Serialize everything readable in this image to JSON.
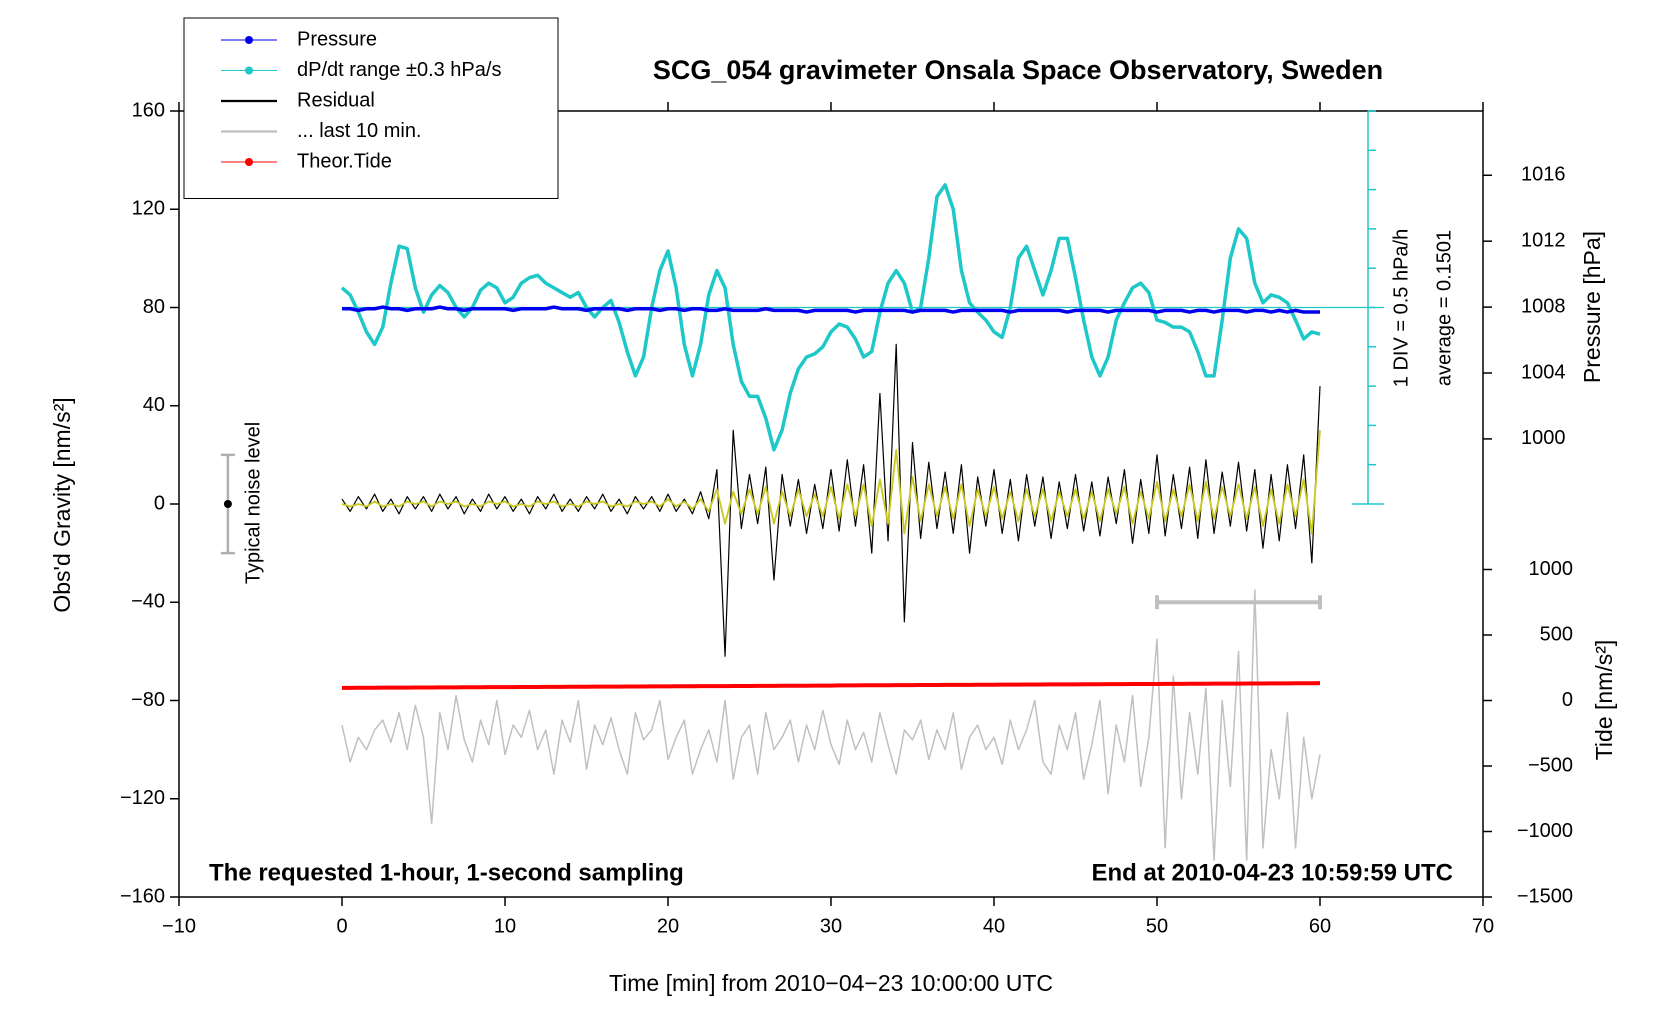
{
  "chart_data": {
    "type": "line",
    "title": "SCG_054 gravimeter Onsala Space Observatory, Sweden",
    "xlabel": "Time [min] from 2010−04−23 10:00:00 UTC",
    "ylabel": "Obs'd Gravity [nm/s²]",
    "y2label": "Pressure [hPa]",
    "y3label": "Tide [nm/s²]",
    "annotations": [
      "The requested 1-hour, 1-second sampling",
      "End at 2010-04-23 10:59:59 UTC",
      "1 DIV = 0.5 hPa/h"
    ],
    "dpdt_average": {
      "value": 0.1501,
      "label": "average = 0.1501"
    },
    "noise_level": {
      "label": "Typical noise level",
      "x": -7,
      "value": 0,
      "error": 20
    },
    "zoom_range": {
      "x": [
        50,
        60
      ],
      "y": -40
    },
    "xlim": [
      -10,
      70
    ],
    "xticks": [
      {
        "value": -10,
        "label": "−10"
      },
      0,
      10,
      20,
      30,
      40,
      50,
      60,
      70
    ],
    "ylim": [
      -160,
      160
    ],
    "yticks": [
      {
        "value": -160,
        "label": "−160"
      },
      {
        "value": -120,
        "label": "−120"
      },
      {
        "value": -80,
        "label": "−80"
      },
      {
        "value": -40,
        "label": "−40"
      },
      0,
      40,
      80,
      120,
      160
    ],
    "y2lim": [
      972.2,
      1019.9
    ],
    "y2ticks": [
      1000,
      1004,
      1008,
      1012,
      1016
    ],
    "y3lim": [
      -1500,
      4500
    ],
    "y3ticks": [
      {
        "value": -1500,
        "label": "−1500"
      },
      {
        "value": -1000,
        "label": "−1000"
      },
      {
        "value": -500,
        "label": "−500"
      },
      0,
      500,
      1000
    ],
    "y4lim": [
      -7.3499,
      2.6501
    ],
    "y4ticks": [
      -2.3499,
      -1.8499,
      -1.3499,
      -0.8499,
      -0.3499,
      0.1501,
      0.6501,
      1.1501,
      1.6501,
      2.1501,
      2.6501
    ],
    "x": [
      0,
      0.5,
      1,
      1.5,
      2,
      2.5,
      3,
      3.5,
      4,
      4.5,
      5,
      5.5,
      6,
      6.5,
      7,
      7.5,
      8,
      8.5,
      9,
      9.5,
      10,
      10.5,
      11,
      11.5,
      12,
      12.5,
      13,
      13.5,
      14,
      14.5,
      15,
      15.5,
      16,
      16.5,
      17,
      17.5,
      18,
      18.5,
      19,
      19.5,
      20,
      20.5,
      21,
      21.5,
      22,
      22.5,
      23,
      23.5,
      24,
      24.5,
      25,
      25.5,
      26,
      26.5,
      27,
      27.5,
      28,
      28.5,
      29,
      29.5,
      30,
      30.5,
      31,
      31.5,
      32,
      32.5,
      33,
      33.5,
      34,
      34.5,
      35,
      35.5,
      36,
      36.5,
      37,
      37.5,
      38,
      38.5,
      39,
      39.5,
      40,
      40.5,
      41,
      41.5,
      42,
      42.5,
      43,
      43.5,
      44,
      44.5,
      45,
      45.5,
      46,
      46.5,
      47,
      47.5,
      48,
      48.5,
      49,
      49.5,
      50,
      50.5,
      51,
      51.5,
      52,
      52.5,
      53,
      53.5,
      54,
      54.5,
      55,
      55.5,
      56,
      56.5,
      57,
      57.5,
      58,
      58.5,
      59,
      59.5,
      60
    ],
    "series": [
      {
        "name": "Pressure",
        "color": "#0000ee",
        "axis": "y2",
        "marker": "circle",
        "width": 3.5,
        "values": [
          1007.9,
          1007.9,
          1007.8,
          1007.9,
          1007.9,
          1008.0,
          1007.9,
          1007.9,
          1007.8,
          1007.9,
          1007.9,
          1007.9,
          1008.0,
          1007.9,
          1007.9,
          1007.8,
          1007.9,
          1007.9,
          1007.9,
          1007.9,
          1007.9,
          1007.8,
          1007.9,
          1007.9,
          1007.9,
          1007.9,
          1008.0,
          1007.9,
          1007.9,
          1007.9,
          1007.8,
          1007.9,
          1007.9,
          1007.9,
          1007.9,
          1007.8,
          1007.9,
          1007.9,
          1007.9,
          1007.8,
          1007.9,
          1007.9,
          1007.8,
          1007.9,
          1007.9,
          1007.8,
          1007.8,
          1007.9,
          1007.8,
          1007.8,
          1007.8,
          1007.8,
          1007.9,
          1007.8,
          1007.8,
          1007.8,
          1007.8,
          1007.7,
          1007.8,
          1007.8,
          1007.8,
          1007.8,
          1007.8,
          1007.7,
          1007.8,
          1007.8,
          1007.8,
          1007.8,
          1007.8,
          1007.8,
          1007.7,
          1007.8,
          1007.8,
          1007.8,
          1007.8,
          1007.7,
          1007.8,
          1007.8,
          1007.8,
          1007.8,
          1007.8,
          1007.8,
          1007.7,
          1007.8,
          1007.8,
          1007.8,
          1007.8,
          1007.8,
          1007.8,
          1007.7,
          1007.8,
          1007.8,
          1007.8,
          1007.8,
          1007.7,
          1007.8,
          1007.8,
          1007.8,
          1007.8,
          1007.8,
          1007.7,
          1007.8,
          1007.8,
          1007.8,
          1007.7,
          1007.8,
          1007.8,
          1007.7,
          1007.8,
          1007.8,
          1007.8,
          1007.7,
          1007.8,
          1007.8,
          1007.7,
          1007.8,
          1007.7,
          1007.8,
          1007.7,
          1007.7,
          1007.7
        ]
      },
      {
        "name": "dP/dt range ±0.3 hPa/s",
        "color": "#1ec8c8",
        "axis": "y4",
        "marker": "circle",
        "width": 3.5,
        "values": [
          0.4,
          0.31,
          0.09,
          -0.16,
          -0.32,
          -0.1,
          0.46,
          0.93,
          0.9,
          0.4,
          0.09,
          0.31,
          0.43,
          0.34,
          0.15,
          0.03,
          0.15,
          0.37,
          0.46,
          0.4,
          0.21,
          0.28,
          0.46,
          0.53,
          0.56,
          0.46,
          0.4,
          0.34,
          0.28,
          0.34,
          0.15,
          0.03,
          0.15,
          0.24,
          -0.04,
          -0.41,
          -0.72,
          -0.48,
          0.15,
          0.62,
          0.87,
          0.4,
          -0.32,
          -0.72,
          -0.32,
          0.31,
          0.62,
          0.4,
          -0.32,
          -0.79,
          -0.98,
          -0.98,
          -1.26,
          -1.66,
          -1.41,
          -0.94,
          -0.63,
          -0.48,
          -0.44,
          -0.35,
          -0.16,
          -0.06,
          -0.1,
          -0.25,
          -0.48,
          -0.41,
          0.09,
          0.46,
          0.62,
          0.46,
          0.09,
          0.15,
          0.78,
          1.56,
          1.71,
          1.4,
          0.62,
          0.21,
          0.09,
          -0.01,
          -0.16,
          -0.23,
          0.15,
          0.78,
          0.93,
          0.62,
          0.31,
          0.62,
          1.03,
          1.03,
          0.53,
          -0.01,
          -0.48,
          -0.72,
          -0.48,
          -0.01,
          0.21,
          0.4,
          0.46,
          0.34,
          -0.01,
          -0.04,
          -0.1,
          -0.1,
          -0.16,
          -0.41,
          -0.72,
          -0.72,
          -0.01,
          0.78,
          1.15,
          1.03,
          0.46,
          0.21,
          0.31,
          0.28,
          0.21,
          -0.01,
          -0.25,
          -0.16,
          -0.19
        ]
      },
      {
        "name": "Residual",
        "color": "#000000",
        "axis": "y",
        "width": 1.2,
        "values": [
          2,
          -3,
          3,
          -2,
          4,
          -3,
          2,
          -4,
          3,
          -2,
          3,
          -3,
          4,
          -2,
          3,
          -4,
          2,
          -3,
          4,
          -2,
          3,
          -3,
          2,
          -4,
          3,
          -2,
          4,
          -3,
          2,
          -3,
          3,
          -2,
          4,
          -3,
          2,
          -4,
          3,
          -2,
          3,
          -3,
          4,
          -3,
          2,
          -4,
          5,
          -6,
          14,
          -62,
          30,
          -10,
          12,
          -8,
          15,
          -31,
          12,
          -9,
          10,
          -12,
          8,
          -10,
          14,
          -11,
          18,
          -9,
          16,
          -20,
          45,
          -15,
          65,
          -48,
          25,
          -14,
          17,
          -10,
          13,
          -12,
          16,
          -20,
          11,
          -9,
          14,
          -12,
          10,
          -15,
          12,
          -9,
          11,
          -14,
          9,
          -10,
          12,
          -11,
          9,
          -13,
          11,
          -8,
          14,
          -16,
          10,
          -12,
          20,
          -13,
          12,
          -10,
          15,
          -14,
          18,
          -12,
          13,
          -9,
          17,
          -11,
          14,
          -18,
          12,
          -15,
          16,
          -10,
          20,
          -24,
          48
        ]
      },
      {
        "name": "... last 10 min.",
        "color": "#c0c0c0",
        "axis": "y",
        "width": 1.5,
        "values": [
          -90,
          -105,
          -95,
          -100,
          -92,
          -88,
          -97,
          -85,
          -100,
          -82,
          -95,
          -130,
          -85,
          -100,
          -78,
          -96,
          -105,
          -88,
          -98,
          -80,
          -102,
          -90,
          -95,
          -84,
          -100,
          -92,
          -110,
          -88,
          -97,
          -80,
          -108,
          -90,
          -98,
          -87,
          -100,
          -110,
          -85,
          -96,
          -92,
          -80,
          -104,
          -95,
          -88,
          -110,
          -100,
          -92,
          -105,
          -80,
          -112,
          -95,
          -90,
          -110,
          -85,
          -100,
          -95,
          -88,
          -105,
          -90,
          -100,
          -84,
          -98,
          -106,
          -88,
          -100,
          -93,
          -105,
          -85,
          -98,
          -110,
          -92,
          -96,
          -88,
          -104,
          -92,
          -100,
          -85,
          -108,
          -95,
          -90,
          -100,
          -95,
          -106,
          -88,
          -100,
          -92,
          -80,
          -105,
          -110,
          -90,
          -100,
          -85,
          -112,
          -98,
          -80,
          -118,
          -90,
          -105,
          -78,
          -115,
          -95,
          -55,
          -140,
          -70,
          -120,
          -85,
          -110,
          -75,
          -145,
          -80,
          -115,
          -60,
          -145,
          -35,
          -140,
          -100,
          -120,
          -85,
          -140,
          -95,
          -120,
          -102
        ]
      },
      {
        "name": "Theor.Tide",
        "color": "#ff0000",
        "axis": "y3",
        "marker": "circle",
        "width": 4,
        "values": [
          96,
          96,
          97,
          97,
          97,
          98,
          98,
          98,
          98,
          99,
          99,
          99,
          100,
          100,
          100,
          101,
          101,
          101,
          102,
          102,
          102,
          102,
          103,
          103,
          103,
          104,
          104,
          104,
          105,
          105,
          105,
          106,
          106,
          106,
          106,
          107,
          107,
          107,
          108,
          108,
          108,
          109,
          109,
          109,
          110,
          110,
          110,
          110,
          111,
          111,
          111,
          112,
          112,
          112,
          113,
          113,
          113,
          113,
          114,
          114,
          114,
          115,
          115,
          115,
          116,
          116,
          116,
          116,
          117,
          117,
          117,
          118,
          118,
          118,
          119,
          119,
          119,
          119,
          120,
          120,
          120,
          121,
          121,
          121,
          122,
          122,
          122,
          123,
          123,
          123,
          123,
          124,
          124,
          124,
          125,
          125,
          125,
          126,
          126,
          126,
          126,
          127,
          127,
          127,
          128,
          128,
          128,
          129,
          129,
          129,
          129,
          130,
          130,
          130,
          131,
          131,
          131,
          132,
          132,
          132,
          133
        ]
      },
      {
        "color": "#c8c81e",
        "axis": "y",
        "width": 1.8,
        "values": [
          0,
          -1,
          0,
          -1,
          1,
          -1,
          0,
          -1,
          1,
          0,
          1,
          -1,
          1,
          0,
          1,
          -1,
          0,
          -1,
          1,
          0,
          1,
          -1,
          0,
          -1,
          1,
          0,
          1,
          -1,
          0,
          -1,
          1,
          0,
          1,
          -1,
          0,
          -1,
          1,
          0,
          1,
          -1,
          2,
          -1,
          1,
          -2,
          2,
          -3,
          6,
          -8,
          5,
          -4,
          6,
          -4,
          7,
          -8,
          5,
          -5,
          6,
          -5,
          4,
          -5,
          7,
          -6,
          8,
          -5,
          8,
          -9,
          10,
          -8,
          22,
          -12,
          11,
          -7,
          8,
          -5,
          7,
          -6,
          8,
          -9,
          6,
          -5,
          7,
          -6,
          5,
          -7,
          6,
          -5,
          6,
          -7,
          5,
          -5,
          6,
          -6,
          5,
          -7,
          6,
          -4,
          7,
          -8,
          5,
          -6,
          9,
          -7,
          6,
          -5,
          8,
          -7,
          9,
          -6,
          7,
          -5,
          8,
          -6,
          7,
          -9,
          6,
          -8,
          8,
          -5,
          10,
          -12,
          30
        ]
      }
    ]
  }
}
